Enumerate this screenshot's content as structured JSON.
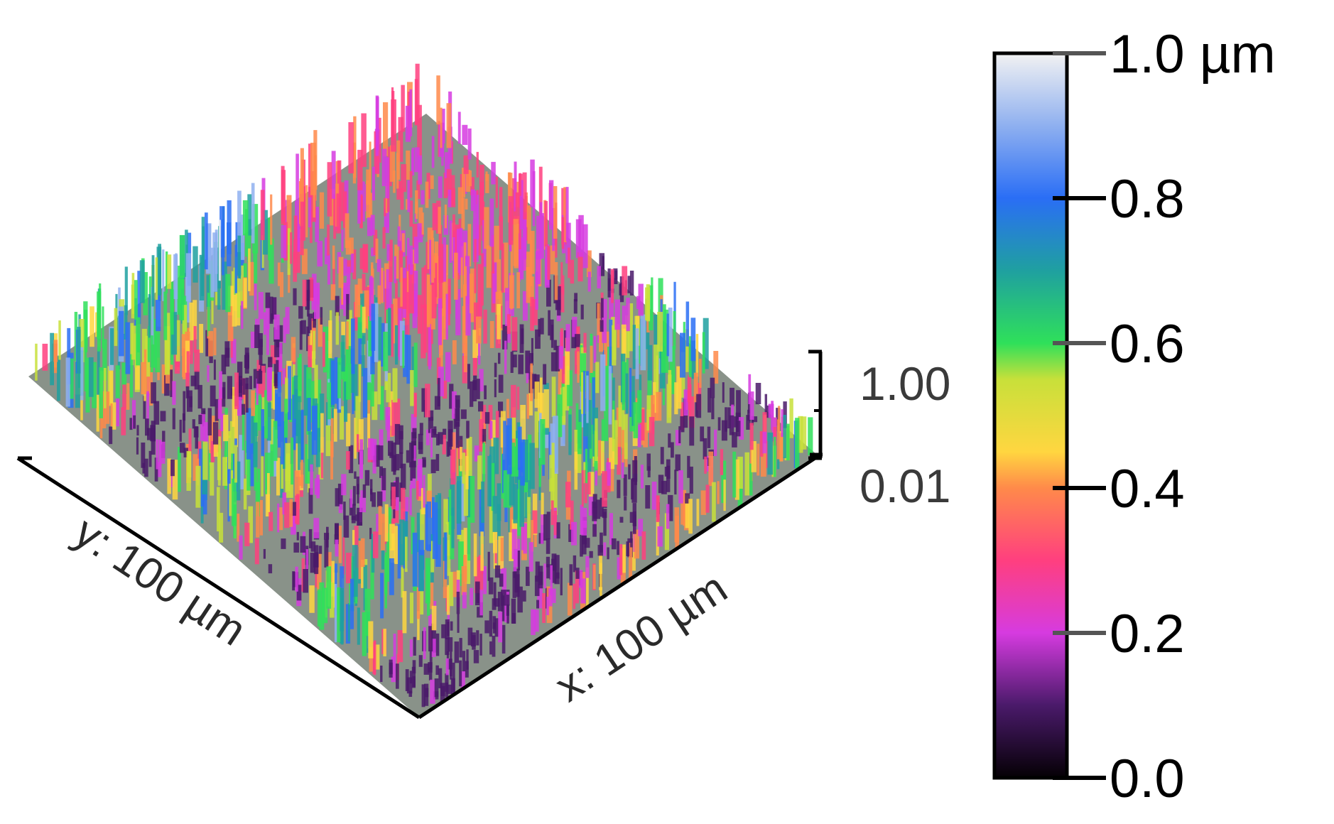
{
  "surface": {
    "x_axis_label": "x: 100 µm",
    "y_axis_label": "y: 100 µm",
    "z_scale_top": "1.00",
    "z_scale_bottom": "0.01",
    "palette": [
      "#0a0a0a",
      "#4a1a6a",
      "#d63be0",
      "#ff3f7f",
      "#ff8a4a",
      "#ffd640",
      "#c8e03a",
      "#2fe05a",
      "#1fa0a0",
      "#2a6ef5",
      "#8fb0f0",
      "#f2f2f2"
    ]
  },
  "colorbar": {
    "ticks": [
      {
        "value": 0.0,
        "label": "0.0"
      },
      {
        "value": 0.2,
        "label": "0.2"
      },
      {
        "value": 0.4,
        "label": "0.4"
      },
      {
        "value": 0.6,
        "label": "0.6"
      },
      {
        "value": 0.8,
        "label": "0.8"
      },
      {
        "value": 1.0,
        "label": "1.0 µm"
      }
    ],
    "stops": [
      {
        "value": 0.0,
        "color": "#050005"
      },
      {
        "value": 0.1,
        "color": "#4a1a6a"
      },
      {
        "value": 0.2,
        "color": "#d63be0"
      },
      {
        "value": 0.3,
        "color": "#ff3f7f"
      },
      {
        "value": 0.4,
        "color": "#ff8a4a"
      },
      {
        "value": 0.45,
        "color": "#ffd640"
      },
      {
        "value": 0.55,
        "color": "#c8e03a"
      },
      {
        "value": 0.6,
        "color": "#2fe05a"
      },
      {
        "value": 0.7,
        "color": "#1fa0a0"
      },
      {
        "value": 0.8,
        "color": "#2a6ef5"
      },
      {
        "value": 0.9,
        "color": "#8fb0f0"
      },
      {
        "value": 1.0,
        "color": "#f2f2f2"
      }
    ]
  }
}
